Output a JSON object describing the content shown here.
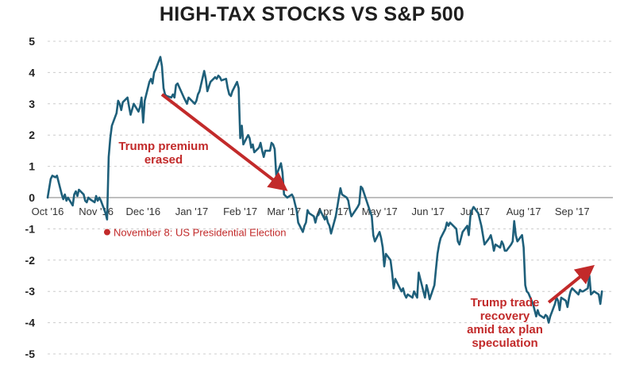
{
  "title": "HIGH-TAX STOCKS VS S&P 500",
  "colors": {
    "line": "#1e5f7a",
    "accent": "#c22a2a",
    "grid": "#cccccc",
    "zero_line": "#aaaaaa"
  },
  "chart_data": {
    "type": "line",
    "title": "HIGH-TAX STOCKS VS S&P 500",
    "xlabel": "",
    "ylabel": "",
    "ylim": [
      -5,
      5
    ],
    "yticks": [
      5,
      4,
      3,
      2,
      1,
      0,
      -1,
      -2,
      -3,
      -4,
      -5
    ],
    "xlim": [
      "2016-10-01",
      "2017-09-27"
    ],
    "xticks": [
      {
        "date": "2016-10-01",
        "label": "Oct '16"
      },
      {
        "date": "2016-11-01",
        "label": "Nov '16"
      },
      {
        "date": "2016-12-01",
        "label": "Dec '16"
      },
      {
        "date": "2017-01-01",
        "label": "Jan '17"
      },
      {
        "date": "2017-02-01",
        "label": "Feb '17"
      },
      {
        "date": "2017-03-01",
        "label": "Mar '17"
      },
      {
        "date": "2017-04-01",
        "label": "Apr '17"
      },
      {
        "date": "2017-05-01",
        "label": "May '17"
      },
      {
        "date": "2017-06-01",
        "label": "Jun '17"
      },
      {
        "date": "2017-07-01",
        "label": "Jul '17"
      },
      {
        "date": "2017-08-01",
        "label": "Aug '17"
      },
      {
        "date": "2017-09-01",
        "label": "Sep '17"
      }
    ],
    "grid": true,
    "series": [
      {
        "points": [
          [
            "2016-10-01",
            0.0
          ],
          [
            "2016-10-03",
            0.6
          ],
          [
            "2016-10-04",
            0.7
          ],
          [
            "2016-10-06",
            0.65
          ],
          [
            "2016-10-07",
            0.7
          ],
          [
            "2016-10-10",
            0.1
          ],
          [
            "2016-10-11",
            -0.05
          ],
          [
            "2016-10-12",
            0.1
          ],
          [
            "2016-10-13",
            -0.1
          ],
          [
            "2016-10-14",
            0.0
          ],
          [
            "2016-10-17",
            -0.25
          ],
          [
            "2016-10-18",
            0.1
          ],
          [
            "2016-10-19",
            0.2
          ],
          [
            "2016-10-20",
            0.05
          ],
          [
            "2016-10-21",
            0.25
          ],
          [
            "2016-10-24",
            0.1
          ],
          [
            "2016-10-25",
            -0.1
          ],
          [
            "2016-10-26",
            -0.15
          ],
          [
            "2016-10-27",
            0.0
          ],
          [
            "2016-10-28",
            -0.05
          ],
          [
            "2016-10-31",
            -0.15
          ],
          [
            "2016-11-01",
            0.05
          ],
          [
            "2016-11-02",
            -0.1
          ],
          [
            "2016-11-03",
            0.0
          ],
          [
            "2016-11-04",
            -0.1
          ],
          [
            "2016-11-07",
            -0.5
          ],
          [
            "2016-11-08",
            -0.7
          ],
          [
            "2016-11-09",
            1.3
          ],
          [
            "2016-11-10",
            1.9
          ],
          [
            "2016-11-11",
            2.3
          ],
          [
            "2016-11-14",
            2.7
          ],
          [
            "2016-11-15",
            3.1
          ],
          [
            "2016-11-16",
            3.0
          ],
          [
            "2016-11-17",
            2.8
          ],
          [
            "2016-11-18",
            3.05
          ],
          [
            "2016-11-21",
            3.2
          ],
          [
            "2016-11-22",
            2.9
          ],
          [
            "2016-11-23",
            2.65
          ],
          [
            "2016-11-25",
            3.0
          ],
          [
            "2016-11-28",
            2.75
          ],
          [
            "2016-11-29",
            2.9
          ],
          [
            "2016-11-30",
            3.2
          ],
          [
            "2016-12-01",
            2.4
          ],
          [
            "2016-12-02",
            3.1
          ],
          [
            "2016-12-05",
            3.7
          ],
          [
            "2016-12-06",
            3.8
          ],
          [
            "2016-12-07",
            3.65
          ],
          [
            "2016-12-08",
            4.0
          ],
          [
            "2016-12-09",
            4.1
          ],
          [
            "2016-12-12",
            4.5
          ],
          [
            "2016-12-13",
            4.2
          ],
          [
            "2016-12-14",
            3.5
          ],
          [
            "2016-12-15",
            3.3
          ],
          [
            "2016-12-16",
            3.25
          ],
          [
            "2016-12-19",
            3.2
          ],
          [
            "2016-12-20",
            3.3
          ],
          [
            "2016-12-21",
            3.2
          ],
          [
            "2016-12-22",
            3.6
          ],
          [
            "2016-12-23",
            3.65
          ],
          [
            "2016-12-27",
            3.2
          ],
          [
            "2016-12-28",
            3.1
          ],
          [
            "2016-12-29",
            3.0
          ],
          [
            "2016-12-30",
            3.2
          ],
          [
            "2017-01-03",
            3.0
          ],
          [
            "2017-01-04",
            3.1
          ],
          [
            "2017-01-05",
            3.3
          ],
          [
            "2017-01-06",
            3.4
          ],
          [
            "2017-01-09",
            4.05
          ],
          [
            "2017-01-10",
            3.8
          ],
          [
            "2017-01-11",
            3.4
          ],
          [
            "2017-01-12",
            3.55
          ],
          [
            "2017-01-13",
            3.7
          ],
          [
            "2017-01-16",
            3.85
          ],
          [
            "2017-01-17",
            3.8
          ],
          [
            "2017-01-18",
            3.9
          ],
          [
            "2017-01-19",
            3.85
          ],
          [
            "2017-01-20",
            3.75
          ],
          [
            "2017-01-23",
            3.8
          ],
          [
            "2017-01-24",
            3.5
          ],
          [
            "2017-01-25",
            3.3
          ],
          [
            "2017-01-26",
            3.25
          ],
          [
            "2017-01-27",
            3.4
          ],
          [
            "2017-01-30",
            3.7
          ],
          [
            "2017-01-31",
            3.5
          ],
          [
            "2017-02-01",
            1.9
          ],
          [
            "2017-02-02",
            2.3
          ],
          [
            "2017-02-03",
            1.7
          ],
          [
            "2017-02-06",
            2.0
          ],
          [
            "2017-02-07",
            1.9
          ],
          [
            "2017-02-08",
            1.6
          ],
          [
            "2017-02-09",
            1.7
          ],
          [
            "2017-02-10",
            1.45
          ],
          [
            "2017-02-13",
            1.6
          ],
          [
            "2017-02-14",
            1.75
          ],
          [
            "2017-02-15",
            1.5
          ],
          [
            "2017-02-16",
            1.3
          ],
          [
            "2017-02-17",
            1.5
          ],
          [
            "2017-02-20",
            1.5
          ],
          [
            "2017-02-21",
            1.75
          ],
          [
            "2017-02-22",
            1.7
          ],
          [
            "2017-02-23",
            1.55
          ],
          [
            "2017-02-24",
            0.7
          ],
          [
            "2017-02-27",
            1.1
          ],
          [
            "2017-02-28",
            0.8
          ],
          [
            "2017-03-01",
            0.1
          ],
          [
            "2017-03-02",
            0.05
          ],
          [
            "2017-03-03",
            0.0
          ],
          [
            "2017-03-06",
            0.1
          ],
          [
            "2017-03-07",
            0.0
          ],
          [
            "2017-03-08",
            -0.2
          ],
          [
            "2017-03-09",
            -0.4
          ],
          [
            "2017-03-10",
            -0.8
          ],
          [
            "2017-03-13",
            -1.1
          ],
          [
            "2017-03-14",
            -0.9
          ],
          [
            "2017-03-15",
            -0.8
          ],
          [
            "2017-03-16",
            -0.4
          ],
          [
            "2017-03-17",
            -0.5
          ],
          [
            "2017-03-20",
            -0.6
          ],
          [
            "2017-03-21",
            -0.8
          ],
          [
            "2017-03-22",
            -0.6
          ],
          [
            "2017-03-23",
            -0.55
          ],
          [
            "2017-03-24",
            -0.4
          ],
          [
            "2017-03-27",
            -0.7
          ],
          [
            "2017-03-28",
            -0.6
          ],
          [
            "2017-03-29",
            -0.8
          ],
          [
            "2017-03-30",
            -0.9
          ],
          [
            "2017-03-31",
            -1.15
          ],
          [
            "2017-04-03",
            -0.6
          ],
          [
            "2017-04-04",
            -0.3
          ],
          [
            "2017-04-05",
            0.0
          ],
          [
            "2017-04-06",
            0.3
          ],
          [
            "2017-04-07",
            0.1
          ],
          [
            "2017-04-10",
            0.0
          ],
          [
            "2017-04-11",
            -0.1
          ],
          [
            "2017-04-12",
            -0.4
          ],
          [
            "2017-04-13",
            -0.6
          ],
          [
            "2017-04-17",
            -0.3
          ],
          [
            "2017-04-18",
            -0.2
          ],
          [
            "2017-04-19",
            0.35
          ],
          [
            "2017-04-20",
            0.3
          ],
          [
            "2017-04-21",
            0.15
          ],
          [
            "2017-04-24",
            -0.3
          ],
          [
            "2017-04-25",
            -0.45
          ],
          [
            "2017-04-26",
            -0.6
          ],
          [
            "2017-04-27",
            -1.2
          ],
          [
            "2017-04-28",
            -1.4
          ],
          [
            "2017-05-01",
            -1.1
          ],
          [
            "2017-05-02",
            -1.3
          ],
          [
            "2017-05-03",
            -1.6
          ],
          [
            "2017-05-04",
            -2.2
          ],
          [
            "2017-05-05",
            -1.8
          ],
          [
            "2017-05-08",
            -2.0
          ],
          [
            "2017-05-09",
            -2.4
          ],
          [
            "2017-05-10",
            -2.9
          ],
          [
            "2017-05-11",
            -2.6
          ],
          [
            "2017-05-12",
            -2.7
          ],
          [
            "2017-05-15",
            -3.0
          ],
          [
            "2017-05-16",
            -2.9
          ],
          [
            "2017-05-17",
            -3.1
          ],
          [
            "2017-05-18",
            -3.2
          ],
          [
            "2017-05-19",
            -3.1
          ],
          [
            "2017-05-22",
            -3.2
          ],
          [
            "2017-05-23",
            -3.0
          ],
          [
            "2017-05-24",
            -3.1
          ],
          [
            "2017-05-25",
            -3.2
          ],
          [
            "2017-05-26",
            -2.4
          ],
          [
            "2017-05-30",
            -3.2
          ],
          [
            "2017-05-31",
            -2.8
          ],
          [
            "2017-06-01",
            -3.0
          ],
          [
            "2017-06-02",
            -3.25
          ],
          [
            "2017-06-05",
            -2.8
          ],
          [
            "2017-06-06",
            -2.3
          ],
          [
            "2017-06-07",
            -1.8
          ],
          [
            "2017-06-08",
            -1.5
          ],
          [
            "2017-06-09",
            -1.3
          ],
          [
            "2017-06-12",
            -1.0
          ],
          [
            "2017-06-13",
            -0.8
          ],
          [
            "2017-06-14",
            -0.9
          ],
          [
            "2017-06-15",
            -0.8
          ],
          [
            "2017-06-16",
            -0.85
          ],
          [
            "2017-06-19",
            -1.0
          ],
          [
            "2017-06-20",
            -1.4
          ],
          [
            "2017-06-21",
            -1.5
          ],
          [
            "2017-06-22",
            -1.3
          ],
          [
            "2017-06-23",
            -1.1
          ],
          [
            "2017-06-26",
            -0.9
          ],
          [
            "2017-06-27",
            -1.2
          ],
          [
            "2017-06-28",
            -0.6
          ],
          [
            "2017-06-29",
            -0.4
          ],
          [
            "2017-06-30",
            -0.3
          ],
          [
            "2017-07-03",
            -0.5
          ],
          [
            "2017-07-05",
            -0.9
          ],
          [
            "2017-07-06",
            -1.2
          ],
          [
            "2017-07-07",
            -1.5
          ],
          [
            "2017-07-10",
            -1.3
          ],
          [
            "2017-07-11",
            -1.2
          ],
          [
            "2017-07-12",
            -1.4
          ],
          [
            "2017-07-13",
            -1.7
          ],
          [
            "2017-07-14",
            -1.5
          ],
          [
            "2017-07-17",
            -1.6
          ],
          [
            "2017-07-18",
            -1.4
          ],
          [
            "2017-07-19",
            -1.5
          ],
          [
            "2017-07-20",
            -1.7
          ],
          [
            "2017-07-21",
            -1.7
          ],
          [
            "2017-07-24",
            -1.5
          ],
          [
            "2017-07-25",
            -1.4
          ],
          [
            "2017-07-26",
            -0.75
          ],
          [
            "2017-07-27",
            -1.2
          ],
          [
            "2017-07-28",
            -1.4
          ],
          [
            "2017-07-31",
            -1.2
          ],
          [
            "2017-08-01",
            -1.6
          ],
          [
            "2017-08-02",
            -2.8
          ],
          [
            "2017-08-03",
            -3.0
          ],
          [
            "2017-08-04",
            -3.05
          ],
          [
            "2017-08-07",
            -3.4
          ],
          [
            "2017-08-08",
            -3.6
          ],
          [
            "2017-08-09",
            -3.8
          ],
          [
            "2017-08-10",
            -3.6
          ],
          [
            "2017-08-11",
            -3.75
          ],
          [
            "2017-08-14",
            -3.85
          ],
          [
            "2017-08-15",
            -3.75
          ],
          [
            "2017-08-16",
            -3.8
          ],
          [
            "2017-08-17",
            -4.0
          ],
          [
            "2017-08-18",
            -3.8
          ],
          [
            "2017-08-21",
            -3.4
          ],
          [
            "2017-08-22",
            -3.2
          ],
          [
            "2017-08-23",
            -3.3
          ],
          [
            "2017-08-24",
            -3.6
          ],
          [
            "2017-08-25",
            -3.2
          ],
          [
            "2017-08-28",
            -3.3
          ],
          [
            "2017-08-29",
            -3.5
          ],
          [
            "2017-08-30",
            -3.2
          ],
          [
            "2017-08-31",
            -3.0
          ],
          [
            "2017-09-01",
            -2.9
          ],
          [
            "2017-09-05",
            -3.1
          ],
          [
            "2017-09-06",
            -2.95
          ],
          [
            "2017-09-07",
            -3.0
          ],
          [
            "2017-09-08",
            -3.0
          ],
          [
            "2017-09-11",
            -2.9
          ],
          [
            "2017-09-12",
            -2.5
          ],
          [
            "2017-09-13",
            -3.1
          ],
          [
            "2017-09-14",
            -3.05
          ],
          [
            "2017-09-15",
            -3.0
          ],
          [
            "2017-09-18",
            -3.1
          ],
          [
            "2017-09-19",
            -3.4
          ],
          [
            "2017-09-20",
            -3.0
          ]
        ]
      }
    ],
    "annotations": [
      {
        "lines": [
          "Trump premium",
          "erased"
        ],
        "arrow_from": [
          "2016-12-13",
          3.3
        ],
        "arrow_to": [
          "2017-03-01",
          0.3
        ]
      },
      {
        "lines": [
          "Trump trade",
          "recovery",
          "amid tax plan",
          "speculation"
        ],
        "arrow_from": [
          "2017-08-17",
          -3.35
        ],
        "arrow_to": [
          "2017-09-13",
          -2.25
        ]
      }
    ],
    "events": [
      {
        "date": "2016-11-08",
        "value": -0.8,
        "label": "November 8: US Presidential Election"
      }
    ]
  }
}
